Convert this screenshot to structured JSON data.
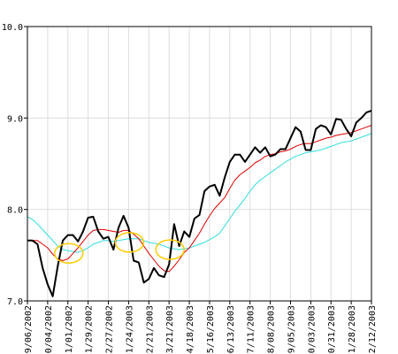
{
  "chart_data": {
    "type": "line",
    "title": "",
    "xlabel": "",
    "ylabel": "",
    "ylim": [
      7.0,
      10.0
    ],
    "grid": true,
    "y_ticks": [
      "7.0",
      "8.0",
      "9.0",
      "10.0"
    ],
    "x_tick_labels": [
      "09/06/2002",
      "10/04/2002",
      "11/01/2002",
      "11/29/2002",
      "12/27/2002",
      "01/24/2003",
      "02/21/2003",
      "03/21/2003",
      "04/18/2003",
      "05/16/2003",
      "06/13/2003",
      "07/11/2003",
      "08/08/2003",
      "09/05/2003",
      "10/03/2003",
      "10/31/2003",
      "11/28/2003",
      "12/12/2003"
    ],
    "series": [
      {
        "color": "#000000",
        "values": [
          7.66,
          7.66,
          7.62,
          7.36,
          7.18,
          7.05,
          7.38,
          7.66,
          7.72,
          7.72,
          7.65,
          7.76,
          7.91,
          7.92,
          7.76,
          7.68,
          7.7,
          7.56,
          7.8,
          7.93,
          7.8,
          7.44,
          7.42,
          7.2,
          7.24,
          7.36,
          7.28,
          7.26,
          7.4,
          7.84,
          7.6,
          7.76,
          7.7,
          7.9,
          7.94,
          8.2,
          8.25,
          8.27,
          8.15,
          8.35,
          8.52,
          8.6,
          8.6,
          8.52,
          8.6,
          8.68,
          8.62,
          8.68,
          8.58,
          8.6,
          8.66,
          8.66,
          8.78,
          8.9,
          8.85,
          8.65,
          8.65,
          8.88,
          8.92,
          8.9,
          8.82,
          8.99,
          8.98,
          8.88,
          8.8,
          8.95,
          9.0,
          9.06,
          9.08
        ]
      },
      {
        "color": "#dd0000",
        "values": [
          7.66,
          7.66,
          7.66,
          7.62,
          7.58,
          7.51,
          7.46,
          7.44,
          7.46,
          7.52,
          7.58,
          7.65,
          7.72,
          7.77,
          7.78,
          7.78,
          7.77,
          7.76,
          7.75,
          7.77,
          7.77,
          7.73,
          7.68,
          7.6,
          7.52,
          7.45,
          7.38,
          7.33,
          7.32,
          7.38,
          7.45,
          7.53,
          7.58,
          7.66,
          7.74,
          7.84,
          7.93,
          8.01,
          8.07,
          8.13,
          8.23,
          8.32,
          8.38,
          8.42,
          8.46,
          8.51,
          8.54,
          8.58,
          8.6,
          8.61,
          8.63,
          8.64,
          8.66,
          8.69,
          8.71,
          8.72,
          8.72,
          8.74,
          8.76,
          8.78,
          8.79,
          8.81,
          8.82,
          8.83,
          8.84,
          8.86,
          8.88,
          8.9,
          8.92
        ]
      },
      {
        "color": "#33dddd",
        "values": [
          7.92,
          7.89,
          7.84,
          7.78,
          7.72,
          7.66,
          7.6,
          7.56,
          7.55,
          7.54,
          7.53,
          7.55,
          7.58,
          7.62,
          7.64,
          7.66,
          7.66,
          7.65,
          7.66,
          7.67,
          7.68,
          7.68,
          7.68,
          7.66,
          7.64,
          7.63,
          7.62,
          7.6,
          7.58,
          7.57,
          7.56,
          7.57,
          7.58,
          7.6,
          7.62,
          7.64,
          7.67,
          7.7,
          7.74,
          7.82,
          7.9,
          7.98,
          8.05,
          8.12,
          8.2,
          8.27,
          8.32,
          8.36,
          8.4,
          8.44,
          8.48,
          8.52,
          8.55,
          8.58,
          8.6,
          8.62,
          8.63,
          8.64,
          8.65,
          8.67,
          8.69,
          8.71,
          8.73,
          8.74,
          8.75,
          8.77,
          8.79,
          8.81,
          8.83
        ]
      }
    ],
    "highlights": [
      {
        "label_index": 2,
        "y": 7.52,
        "color": "#ffcc00"
      },
      {
        "label_index": 5,
        "y": 7.64,
        "color": "#ffcc00"
      },
      {
        "label_index": 7,
        "y": 7.56,
        "color": "#ffcc00"
      }
    ]
  }
}
